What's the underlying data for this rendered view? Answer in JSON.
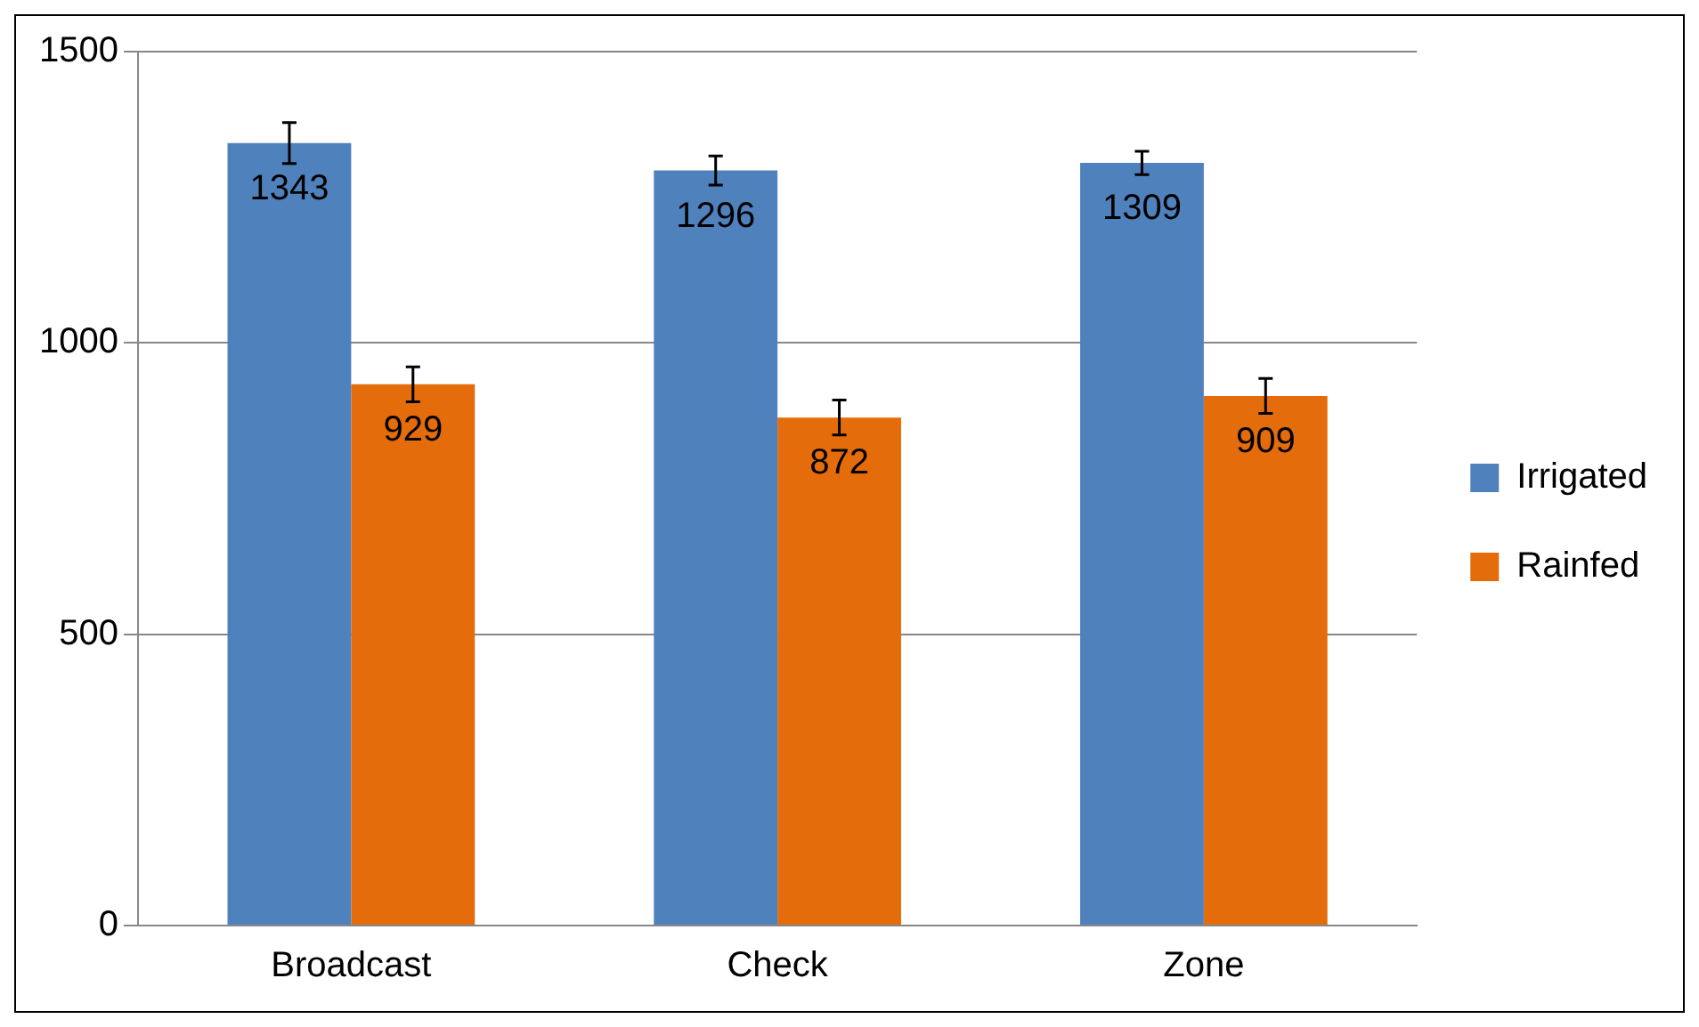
{
  "chart_data": {
    "type": "bar",
    "categories": [
      "Broadcast",
      "Check",
      "Zone"
    ],
    "series": [
      {
        "name": "Irrigated",
        "color": "#4f81bd",
        "values": [
          1343,
          1296,
          1309
        ],
        "errors": [
          35,
          25,
          20
        ]
      },
      {
        "name": "Rainfed",
        "color": "#e46c0a",
        "values": [
          929,
          872,
          909
        ],
        "errors": [
          30,
          30,
          30
        ]
      }
    ],
    "ylim": [
      0,
      1500
    ],
    "yticks": [
      0,
      500,
      1000,
      1500
    ],
    "grid": "y",
    "legend": "right",
    "data_labels": true
  }
}
